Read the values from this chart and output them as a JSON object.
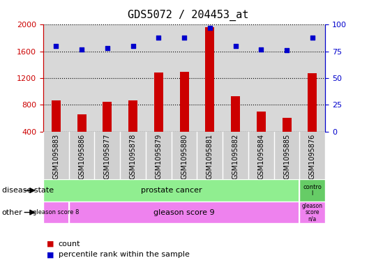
{
  "title": "GDS5072 / 204453_at",
  "samples": [
    "GSM1095883",
    "GSM1095886",
    "GSM1095877",
    "GSM1095878",
    "GSM1095879",
    "GSM1095880",
    "GSM1095881",
    "GSM1095882",
    "GSM1095884",
    "GSM1095885",
    "GSM1095876"
  ],
  "counts": [
    870,
    660,
    840,
    870,
    1280,
    1290,
    1960,
    930,
    700,
    610,
    1270
  ],
  "percentile_ranks": [
    80,
    77,
    78,
    80,
    88,
    88,
    97,
    80,
    77,
    76,
    88
  ],
  "ylim_left": [
    400,
    2000
  ],
  "ylim_right": [
    0,
    100
  ],
  "yticks_left": [
    400,
    800,
    1200,
    1600,
    2000
  ],
  "yticks_right": [
    0,
    25,
    50,
    75,
    100
  ],
  "bar_color": "#CC0000",
  "dot_color": "#0000CC",
  "left_axis_color": "#CC0000",
  "right_axis_color": "#0000CC",
  "plot_bg_color": "#d8d8d8",
  "xtick_bg_color": "#d0d0d0",
  "disease_state_prostate_color": "#90EE90",
  "disease_state_control_color": "#66CC66",
  "other_color": "#EE82EE",
  "prostate_cancer_label": "prostate cancer",
  "control_label": "contro\nl",
  "gleason8_label": "gleason score 8",
  "gleason9_label": "gleason score 9",
  "gleason_na_label": "gleason\nscore\nn/a"
}
